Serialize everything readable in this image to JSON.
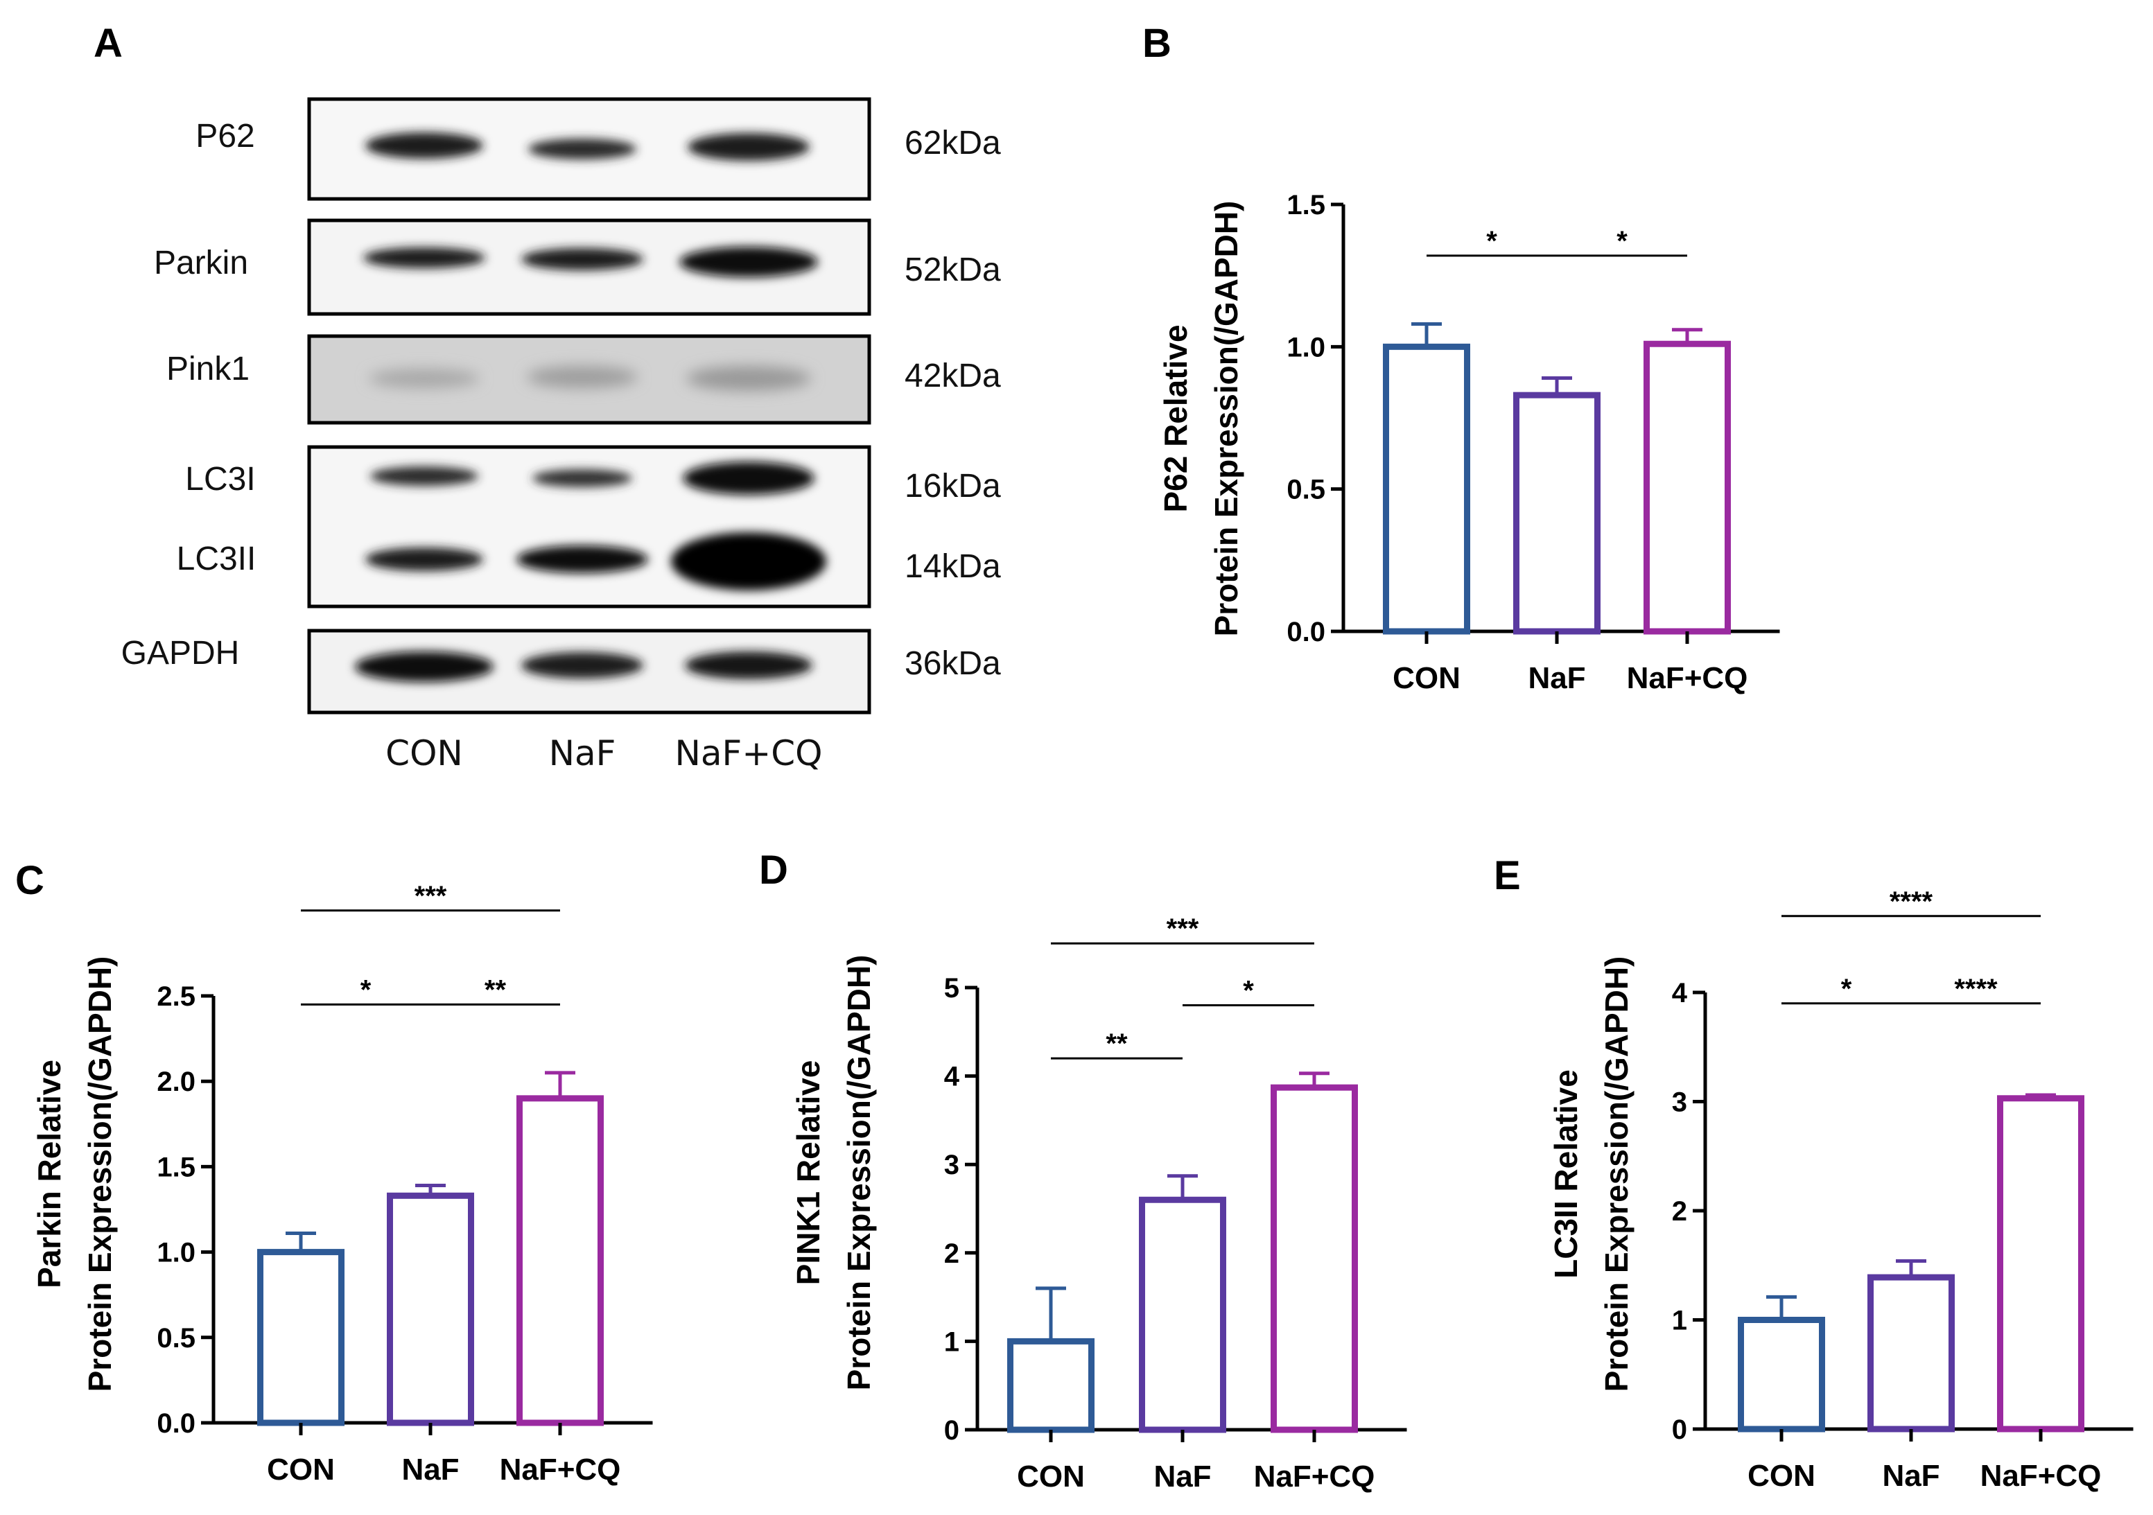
{
  "colors": {
    "CON": "#2e5a96",
    "NaF": "#5a3aa0",
    "NaF+CQ": "#9a2aa0"
  },
  "blot": {
    "letter": "A",
    "rows": [
      {
        "name": "P62",
        "size": "62kDa"
      },
      {
        "name": "Parkin",
        "size": "52kDa"
      },
      {
        "name": "Pink1",
        "size": "42kDa"
      },
      {
        "name": "LC3I",
        "size": "16kDa"
      },
      {
        "name": "LC3II",
        "size": "14kDa"
      },
      {
        "name": "GAPDH",
        "size": "36kDa"
      }
    ],
    "lanes": [
      "CON",
      "NaF",
      "NaF+CQ"
    ]
  },
  "chart_data": [
    {
      "letter": "B",
      "type": "bar",
      "categories": [
        "CON",
        "NaF",
        "NaF+CQ"
      ],
      "values": [
        1.0,
        0.83,
        1.01
      ],
      "errors": [
        0.08,
        0.06,
        0.05
      ],
      "ylabel": [
        "P62 Relative",
        "Protein Expression(/GAPDH)"
      ],
      "ylim": [
        0,
        1.5
      ],
      "yticks": [
        "0.0",
        "0.5",
        "1.0",
        "1.5"
      ],
      "significance": [
        {
          "from": 0,
          "to": 1,
          "label": "*",
          "y": 1.32
        },
        {
          "from": 1,
          "to": 2,
          "label": "*",
          "y": 1.32
        }
      ]
    },
    {
      "letter": "C",
      "type": "bar",
      "categories": [
        "CON",
        "NaF",
        "NaF+CQ"
      ],
      "values": [
        1.0,
        1.33,
        1.9
      ],
      "errors": [
        0.11,
        0.06,
        0.15
      ],
      "ylabel": [
        "Parkin Relative",
        "Protein Expression(/GAPDH)"
      ],
      "ylim": [
        0,
        2.5
      ],
      "yticks": [
        "0.0",
        "0.5",
        "1.0",
        "1.5",
        "2.0",
        "2.5"
      ],
      "significance": [
        {
          "from": 0,
          "to": 1,
          "label": "*",
          "y": 2.45
        },
        {
          "from": 1,
          "to": 2,
          "label": "**",
          "y": 2.45
        },
        {
          "from": 0,
          "to": 2,
          "label": "***",
          "y": 3.0
        }
      ]
    },
    {
      "letter": "D",
      "type": "bar",
      "categories": [
        "CON",
        "NaF",
        "NaF+CQ"
      ],
      "values": [
        1.0,
        2.6,
        3.87
      ],
      "errors": [
        0.6,
        0.27,
        0.16
      ],
      "ylabel": [
        "PINK1 Relative",
        "Protein Expression(/GAPDH)"
      ],
      "ylim": [
        0,
        5
      ],
      "yticks": [
        "0",
        "1",
        "2",
        "3",
        "4",
        "5"
      ],
      "significance": [
        {
          "from": 0,
          "to": 1,
          "label": "**",
          "y": 4.2
        },
        {
          "from": 1,
          "to": 2,
          "label": "*",
          "y": 4.8
        },
        {
          "from": 0,
          "to": 2,
          "label": "***",
          "y": 5.5
        }
      ]
    },
    {
      "letter": "E",
      "type": "bar",
      "categories": [
        "CON",
        "NaF",
        "NaF+CQ"
      ],
      "values": [
        1.0,
        1.39,
        3.03
      ],
      "errors": [
        0.21,
        0.15,
        0.03
      ],
      "ylabel": [
        "LC3II Relative",
        "Protein Expression(/GAPDH)"
      ],
      "ylim": [
        0,
        4
      ],
      "yticks": [
        "0",
        "1",
        "2",
        "3",
        "4"
      ],
      "significance": [
        {
          "from": 0,
          "to": 1,
          "label": "*",
          "y": 3.9
        },
        {
          "from": 1,
          "to": 2,
          "label": "****",
          "y": 3.9
        },
        {
          "from": 0,
          "to": 2,
          "label": "****",
          "y": 4.7
        }
      ]
    }
  ]
}
